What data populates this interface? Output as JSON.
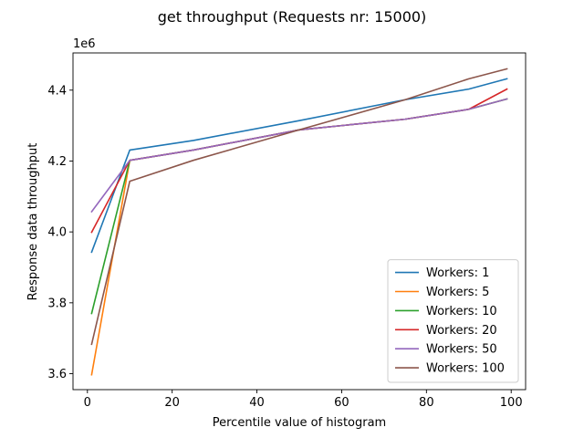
{
  "chart_data": {
    "type": "line",
    "title": "get throughput (Requests nr: 15000)",
    "xlabel": "Percentile value of histogram",
    "ylabel": "Response data throughput",
    "y_offset_label": "1e6",
    "xlim": [
      -3.4,
      103.4
    ],
    "ylim": [
      3.555,
      4.505
    ],
    "y_scale_factor": 1000000,
    "xticks": [
      0,
      20,
      40,
      60,
      80,
      100
    ],
    "yticks": [
      3.6,
      3.8,
      4.0,
      4.2,
      4.4
    ],
    "ytick_labels": [
      "3.6",
      "3.8",
      "4.0",
      "4.2",
      "4.4"
    ],
    "grid": false,
    "legend_position": "lower right",
    "x": [
      1,
      10,
      25,
      50,
      75,
      90,
      99
    ],
    "series": [
      {
        "name": "Workers: 1",
        "color": "#1f77b4",
        "values": [
          3.943,
          4.231,
          4.258,
          4.314,
          4.373,
          4.403,
          4.432
        ]
      },
      {
        "name": "Workers: 5",
        "color": "#ff7f0e",
        "values": [
          3.597,
          4.202,
          4.231,
          4.288,
          4.318,
          4.346,
          4.375
        ]
      },
      {
        "name": "Workers: 10",
        "color": "#2ca02c",
        "values": [
          3.77,
          4.202,
          4.231,
          4.288,
          4.318,
          4.346,
          4.375
        ]
      },
      {
        "name": "Workers: 20",
        "color": "#d62728",
        "values": [
          3.999,
          4.202,
          4.231,
          4.288,
          4.318,
          4.346,
          4.403
        ]
      },
      {
        "name": "Workers: 50",
        "color": "#9467bd",
        "values": [
          4.057,
          4.202,
          4.231,
          4.288,
          4.318,
          4.346,
          4.375
        ]
      },
      {
        "name": "Workers: 100",
        "color": "#8c564b",
        "values": [
          3.683,
          4.143,
          4.202,
          4.288,
          4.373,
          4.432,
          4.46
        ]
      }
    ]
  }
}
